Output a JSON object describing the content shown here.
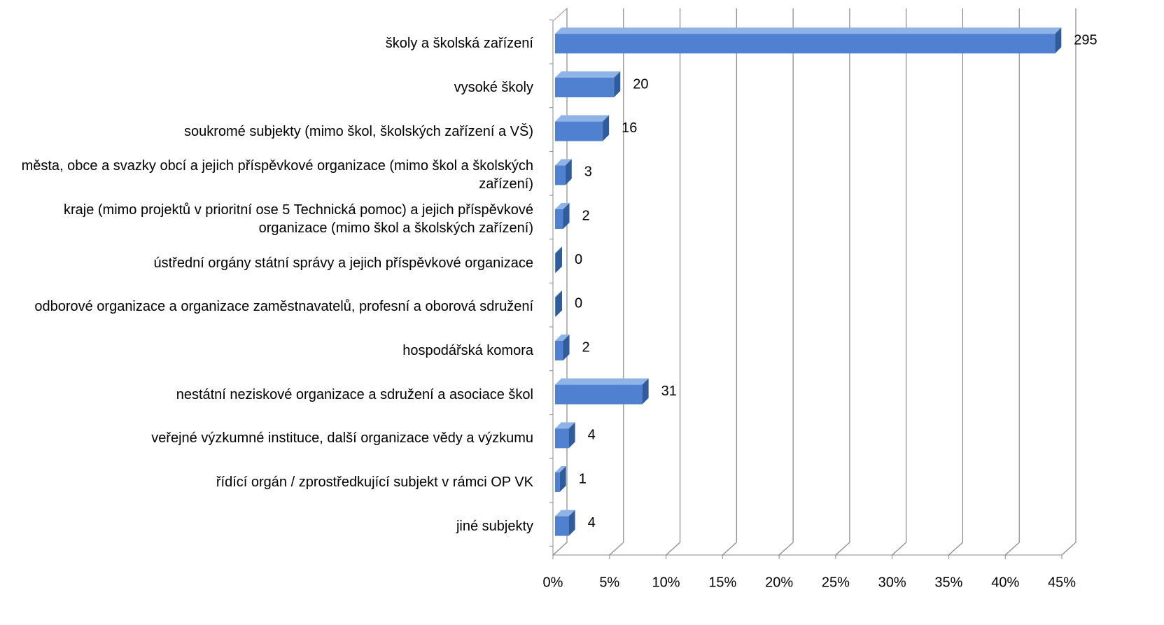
{
  "chart_data": {
    "type": "bar3d_horizontal",
    "categories": [
      "školy a školská zařízení",
      "vysoké školy",
      "soukromé subjekty (mimo škol, školských zařízení a VŠ)",
      "města, obce a svazky obcí a jejich příspěvkové organizace (mimo škol a školských zařízení)",
      "kraje (mimo projektů v prioritní ose 5 Technická pomoc) a jejich příspěvkové organizace (mimo škol a školských zařízení)",
      "ústřední orgány státní správy a jejich příspěvkové organizace",
      "odborové organizace a organizace zaměstnavatelů, profesní a oborová sdružení",
      "hospodářská komora",
      "nestátní neziskové organizace a sdružení a asociace škol",
      "veřejné výzkumné instituce, další organizace vědy a výzkumu",
      "řídící orgán / zprostředkující subjekt v rámci OP VK",
      "jiné subjekty"
    ],
    "values": [
      44.4,
      5.4,
      4.4,
      1.1,
      0.9,
      0.1,
      0.1,
      0.9,
      7.9,
      1.4,
      0.6,
      1.4
    ],
    "data_labels": [
      295,
      20,
      16,
      3,
      2,
      0,
      0,
      2,
      31,
      4,
      1,
      4
    ],
    "color": "#4f81d0",
    "xlim": [
      0,
      45
    ],
    "xticks": [
      {
        "value": 0,
        "label": "0%"
      },
      {
        "value": 5,
        "label": "5%"
      },
      {
        "value": 10,
        "label": "10%"
      },
      {
        "value": 15,
        "label": "15%"
      },
      {
        "value": 20,
        "label": "20%"
      },
      {
        "value": 25,
        "label": "25%"
      },
      {
        "value": 30,
        "label": "30%"
      },
      {
        "value": 35,
        "label": "35%"
      },
      {
        "value": 40,
        "label": "40%"
      },
      {
        "value": 45,
        "label": "45%"
      }
    ],
    "grid": true
  }
}
